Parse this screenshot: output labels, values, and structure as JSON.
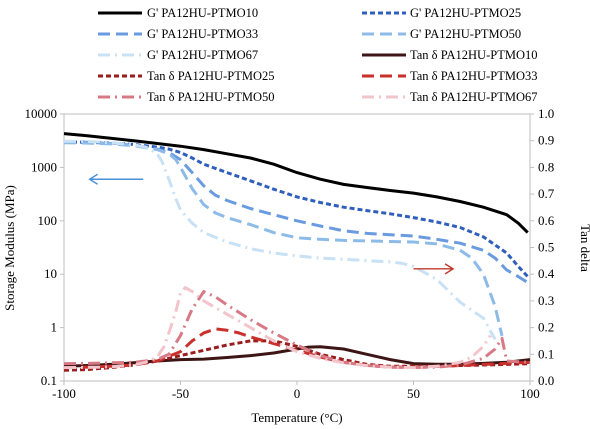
{
  "chart_data": {
    "type": "line",
    "xlabel": "Temperature (°C)",
    "ylabel_left": "Storage Modulus (MPa)",
    "ylabel_right": "Tan delta",
    "x_range": [
      -100,
      100
    ],
    "x_ticks": [
      -100,
      -50,
      0,
      50,
      100
    ],
    "x_tick_labels": [
      "-100",
      "-50",
      "0",
      "50",
      "100"
    ],
    "y_left_range": [
      0.1,
      10000
    ],
    "y_left_scale": "log",
    "y_left_ticks": [
      0.1,
      1,
      10,
      100,
      1000,
      10000
    ],
    "y_left_tick_labels": [
      "0.1",
      "1",
      "10",
      "100",
      "1000",
      "10000"
    ],
    "y_right_range": [
      0,
      1
    ],
    "y_right_ticks": [
      0,
      0.1,
      0.2,
      0.3,
      0.4,
      0.5,
      0.6,
      0.7,
      0.8,
      0.9,
      1
    ],
    "y_right_tick_labels": [
      "0.0",
      "0.1",
      "0.2",
      "0.3",
      "0.4",
      "0.5",
      "0.6",
      "0.7",
      "0.8",
      "0.9",
      "1.0"
    ],
    "grid": false,
    "legend_placement": "top",
    "annotations": [
      {
        "kind": "arrow",
        "points_to": "left axis",
        "color": "#4a90d9",
        "x_from": -66,
        "x_to": -89,
        "y": 600
      },
      {
        "kind": "arrow",
        "points_to": "right axis",
        "color": "#c0392b",
        "x_from": 50,
        "x_to": 67,
        "y": 0.42
      }
    ],
    "series": [
      {
        "name": "G' PA12HU-PTMO10",
        "axis": "left",
        "color": "#000000",
        "dash": "solid",
        "x": [
          -100,
          -90,
          -80,
          -70,
          -60,
          -50,
          -40,
          -30,
          -20,
          -10,
          0,
          10,
          20,
          30,
          40,
          50,
          60,
          70,
          80,
          90,
          95,
          99
        ],
        "y": [
          4300,
          3900,
          3500,
          3150,
          2800,
          2500,
          2150,
          1800,
          1500,
          1150,
          800,
          600,
          480,
          420,
          370,
          330,
          280,
          230,
          180,
          130,
          90,
          60
        ]
      },
      {
        "name": "G' PA12HU-PTMO25",
        "axis": "left",
        "color": "#2e5fbd",
        "dash": "dashed",
        "x": [
          -100,
          -90,
          -80,
          -70,
          -60,
          -55,
          -50,
          -45,
          -40,
          -30,
          -20,
          -10,
          0,
          10,
          20,
          30,
          40,
          50,
          60,
          70,
          80,
          90,
          95,
          99
        ],
        "y": [
          3000,
          2950,
          2850,
          2700,
          2400,
          2200,
          1900,
          1500,
          1150,
          800,
          560,
          390,
          280,
          220,
          180,
          155,
          135,
          115,
          95,
          75,
          50,
          25,
          14,
          9
        ]
      },
      {
        "name": "G' PA12HU-PTMO33",
        "axis": "left",
        "color": "#6a9be0",
        "dash": "longdash",
        "x": [
          -100,
          -90,
          -80,
          -70,
          -60,
          -55,
          -50,
          -45,
          -40,
          -35,
          -30,
          -20,
          -10,
          0,
          10,
          20,
          30,
          40,
          50,
          60,
          70,
          80,
          85,
          90,
          95,
          99
        ],
        "y": [
          3000,
          2950,
          2800,
          2600,
          2200,
          1900,
          1400,
          800,
          450,
          300,
          240,
          170,
          130,
          100,
          80,
          65,
          58,
          55,
          52,
          45,
          38,
          28,
          20,
          12,
          9,
          7
        ]
      },
      {
        "name": "G' PA12HU-PTMO50",
        "axis": "left",
        "color": "#8dbbe8",
        "dash": "longdash",
        "x": [
          -100,
          -90,
          -80,
          -70,
          -60,
          -55,
          -52,
          -50,
          -45,
          -40,
          -35,
          -30,
          -20,
          -10,
          0,
          10,
          20,
          30,
          40,
          50,
          60,
          70,
          75,
          80,
          85,
          88
        ],
        "y": [
          2900,
          2850,
          2750,
          2550,
          2150,
          1800,
          1400,
          1000,
          400,
          200,
          140,
          115,
          85,
          60,
          48,
          45,
          43,
          42,
          41,
          40,
          37,
          28,
          20,
          10,
          2.5,
          0.7
        ]
      },
      {
        "name": "G' PA12HU-PTMO67",
        "axis": "left",
        "color": "#c9e1f4",
        "dash": "dashdot",
        "x": [
          -100,
          -90,
          -80,
          -70,
          -65,
          -60,
          -58,
          -55,
          -52,
          -50,
          -45,
          -40,
          -30,
          -20,
          -10,
          0,
          10,
          20,
          30,
          40,
          45,
          50,
          60,
          70,
          80,
          85
        ],
        "y": [
          3100,
          3050,
          2900,
          2650,
          2400,
          1800,
          1300,
          600,
          260,
          160,
          90,
          60,
          40,
          30,
          25,
          22,
          20,
          19,
          18,
          17,
          16,
          14,
          8,
          3,
          1.5,
          0.6
        ]
      },
      {
        "name": "Tan δ PA12HU-PTMO10",
        "axis": "right",
        "color": "#3d1515",
        "dash": "solid",
        "x": [
          -100,
          -90,
          -80,
          -70,
          -60,
          -50,
          -40,
          -30,
          -20,
          -10,
          0,
          5,
          10,
          20,
          30,
          40,
          50,
          60,
          70,
          80,
          90,
          100
        ],
        "y": [
          0.055,
          0.058,
          0.062,
          0.068,
          0.075,
          0.08,
          0.082,
          0.088,
          0.095,
          0.105,
          0.12,
          0.127,
          0.128,
          0.12,
          0.1,
          0.08,
          0.065,
          0.063,
          0.063,
          0.066,
          0.07,
          0.08
        ]
      },
      {
        "name": "Tan δ PA12HU-PTMO25",
        "axis": "right",
        "color": "#9b1c1c",
        "dash": "dashed",
        "x": [
          -100,
          -90,
          -80,
          -70,
          -60,
          -50,
          -40,
          -30,
          -20,
          -10,
          0,
          10,
          20,
          30,
          40,
          50,
          60,
          70,
          80,
          90,
          100
        ],
        "y": [
          0.04,
          0.043,
          0.05,
          0.06,
          0.075,
          0.095,
          0.115,
          0.135,
          0.15,
          0.15,
          0.13,
          0.1,
          0.08,
          0.062,
          0.055,
          0.055,
          0.055,
          0.058,
          0.06,
          0.062,
          0.065
        ]
      },
      {
        "name": "Tan δ PA12HU-PTMO33",
        "axis": "right",
        "color": "#c9302c",
        "dash": "longdash",
        "x": [
          -100,
          -90,
          -80,
          -70,
          -60,
          -50,
          -45,
          -40,
          -35,
          -30,
          -25,
          -20,
          -10,
          0,
          10,
          20,
          30,
          40,
          50,
          60,
          70,
          80,
          90,
          100
        ],
        "y": [
          0.05,
          0.052,
          0.055,
          0.06,
          0.075,
          0.11,
          0.15,
          0.18,
          0.195,
          0.19,
          0.18,
          0.165,
          0.14,
          0.115,
          0.09,
          0.07,
          0.058,
          0.052,
          0.052,
          0.055,
          0.058,
          0.062,
          0.066,
          0.07
        ]
      },
      {
        "name": "Tan δ PA12HU-PTMO50",
        "axis": "right",
        "color": "#d77a86",
        "dash": "dashdot",
        "x": [
          -100,
          -90,
          -80,
          -70,
          -60,
          -55,
          -50,
          -45,
          -40,
          -35,
          -30,
          -20,
          -10,
          0,
          10,
          20,
          30,
          40,
          50,
          60,
          70,
          80,
          85,
          88,
          90,
          100
        ],
        "y": [
          0.065,
          0.066,
          0.068,
          0.07,
          0.08,
          0.1,
          0.17,
          0.27,
          0.335,
          0.315,
          0.285,
          0.23,
          0.18,
          0.135,
          0.095,
          0.07,
          0.058,
          0.052,
          0.05,
          0.052,
          0.06,
          0.085,
          0.12,
          0.16,
          0.075,
          0.07
        ]
      },
      {
        "name": "Tan δ PA12HU-PTMO67",
        "axis": "right",
        "color": "#f2c4cc",
        "dash": "dashdot",
        "x": [
          -100,
          -90,
          -80,
          -70,
          -65,
          -60,
          -57,
          -55,
          -52,
          -50,
          -48,
          -45,
          -40,
          -30,
          -20,
          -10,
          0,
          10,
          20,
          30,
          40,
          50,
          60,
          70,
          75,
          80,
          83
        ],
        "y": [
          0.05,
          0.051,
          0.053,
          0.06,
          0.07,
          0.09,
          0.13,
          0.18,
          0.26,
          0.33,
          0.35,
          0.335,
          0.3,
          0.25,
          0.2,
          0.15,
          0.11,
          0.085,
          0.068,
          0.058,
          0.052,
          0.05,
          0.055,
          0.07,
          0.09,
          0.13,
          0.17
        ]
      }
    ]
  }
}
